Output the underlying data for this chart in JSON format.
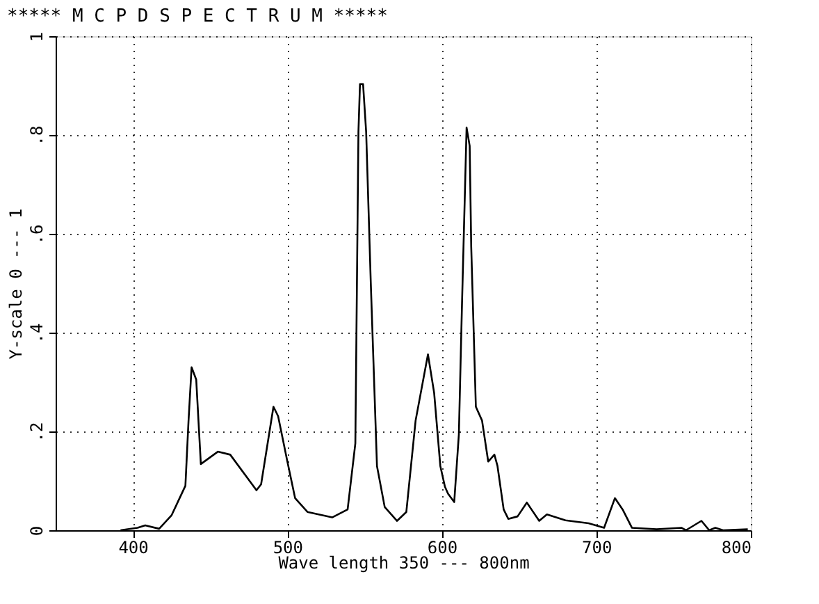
{
  "chart_data": {
    "type": "line",
    "title": "*****   M C P D   S P E C T R U M   *****",
    "xlabel": "Wave length  350 --- 800nm",
    "ylabel": "Y-scale  0 --- 1",
    "xlim": [
      350,
      800
    ],
    "ylim": [
      0,
      1
    ],
    "xticks": [
      400,
      500,
      600,
      700,
      800
    ],
    "yticks": [
      0,
      {
        "value": 0.2,
        "label": ".2"
      },
      {
        "value": 0.4,
        "label": ".4"
      },
      {
        "value": 0.6,
        "label": ".6"
      },
      {
        "value": 0.8,
        "label": ".8"
      },
      1
    ],
    "grid": true,
    "marker": "none",
    "line_style": "solid",
    "series": [
      {
        "color": "#000000",
        "x": [
          392,
          403,
          408,
          417,
          425,
          434,
          436,
          438,
          441,
          444,
          455,
          463,
          480,
          483,
          491,
          494,
          500,
          505,
          513,
          529,
          539,
          544,
          546,
          547,
          549,
          551,
          554,
          558,
          563,
          571,
          577,
          583,
          591,
          595,
          599,
          602,
          604,
          608,
          611,
          613,
          615,
          616,
          618,
          619,
          622,
          626,
          630,
          634,
          636,
          640,
          643,
          649,
          655,
          663,
          668,
          680,
          695,
          705,
          712,
          717,
          723,
          739,
          755,
          758,
          768,
          773,
          777,
          782,
          798
        ],
        "values": [
          0.0,
          0.005,
          0.01,
          0.003,
          0.03,
          0.09,
          0.22,
          0.33,
          0.305,
          0.134,
          0.159,
          0.153,
          0.081,
          0.093,
          0.25,
          0.231,
          0.139,
          0.065,
          0.037,
          0.026,
          0.042,
          0.176,
          0.806,
          0.903,
          0.903,
          0.806,
          0.5,
          0.13,
          0.047,
          0.019,
          0.037,
          0.222,
          0.356,
          0.278,
          0.13,
          0.088,
          0.074,
          0.057,
          0.194,
          0.454,
          0.694,
          0.815,
          0.778,
          0.574,
          0.25,
          0.222,
          0.139,
          0.153,
          0.13,
          0.042,
          0.023,
          0.028,
          0.056,
          0.019,
          0.032,
          0.02,
          0.014,
          0.005,
          0.065,
          0.042,
          0.005,
          0.002,
          0.005,
          0.0,
          0.019,
          0.0,
          0.005,
          0.0,
          0.002
        ]
      }
    ]
  }
}
